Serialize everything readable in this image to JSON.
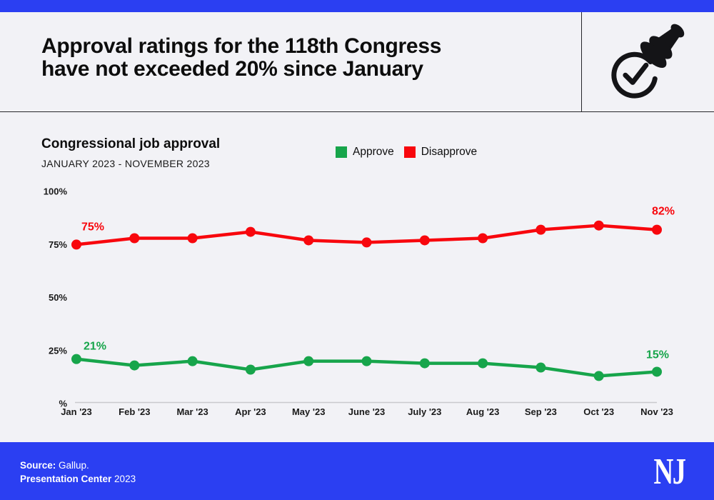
{
  "colors": {
    "accent": "#2b3ff2",
    "background": "#f2f2f6",
    "approve_green": "#17a54b",
    "disapprove_red": "#f8070d"
  },
  "header": {
    "title_line1": "Approval ratings for the 118th Congress",
    "title_line2": "have not exceeded 20% since January",
    "stamp_icon": "approval-stamp-icon"
  },
  "chart": {
    "title": "Congressional job approval",
    "subtitle": "JANUARY 2023 - NOVEMBER 2023"
  },
  "chart_data": {
    "type": "line",
    "title": "Congressional job approval",
    "subtitle": "JANUARY 2023 - NOVEMBER 2023",
    "categories": [
      "Jan '23",
      "Feb '23",
      "Mar '23",
      "Apr '23",
      "May '23",
      "June '23",
      "July '23",
      "Aug '23",
      "Sep '23",
      "Oct '23",
      "Nov '23"
    ],
    "series": [
      {
        "name": "Approve",
        "color": "#17a54b",
        "values": [
          21,
          18,
          20,
          16,
          20,
          20,
          19,
          19,
          17,
          13,
          15
        ]
      },
      {
        "name": "Disapprove",
        "color": "#f8070d",
        "values": [
          75,
          78,
          78,
          81,
          77,
          76,
          77,
          78,
          82,
          84,
          82
        ]
      }
    ],
    "ylim": [
      0,
      100
    ],
    "yticks": [
      {
        "value": 100,
        "label": "100%"
      },
      {
        "value": 75,
        "label": "75%"
      },
      {
        "value": 50,
        "label": "50%"
      },
      {
        "value": 25,
        "label": "25%"
      },
      {
        "value": 0,
        "label": "%"
      }
    ],
    "xlabel": "",
    "ylabel": "%",
    "grid": false,
    "legend_position": "top",
    "annotations": [
      {
        "series": 1,
        "index": 0,
        "label": "75%"
      },
      {
        "series": 0,
        "index": 0,
        "label": "21%"
      },
      {
        "series": 1,
        "index": 10,
        "label": "82%"
      },
      {
        "series": 0,
        "index": 10,
        "label": "15%"
      }
    ]
  },
  "footer": {
    "source_label": "Source:",
    "source_value": " Gallup.",
    "credit_label": "Presentation Center",
    "credit_value": " 2023",
    "logo_text": "NJ"
  }
}
